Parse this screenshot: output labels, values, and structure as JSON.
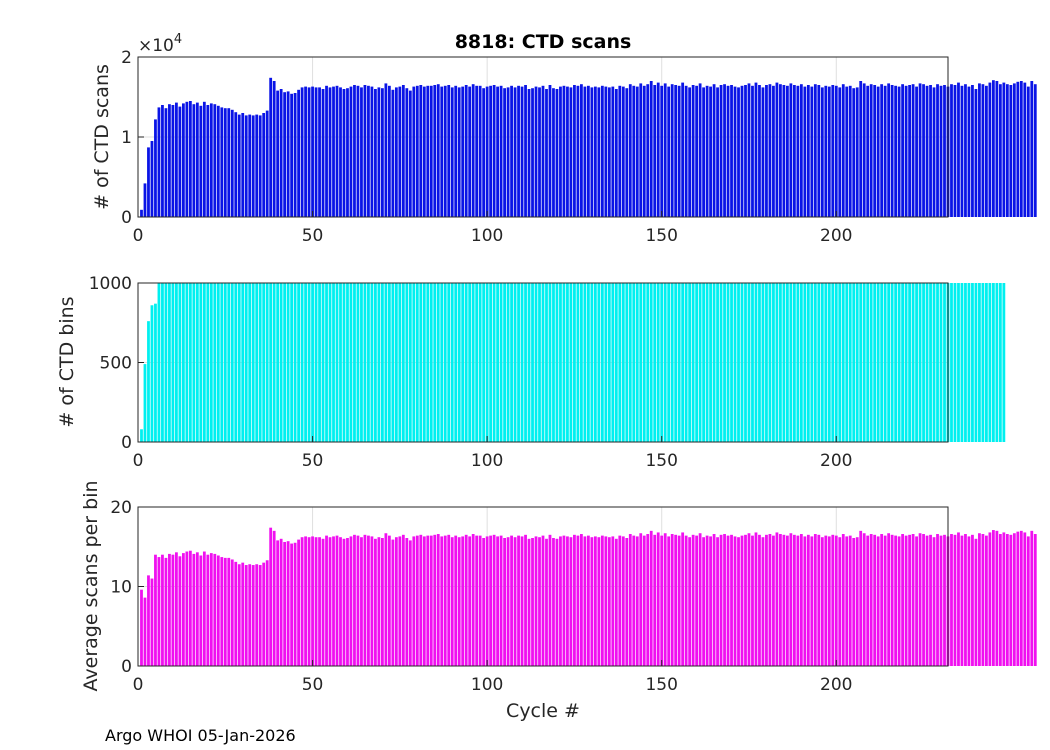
{
  "chart_data": [
    {
      "type": "bar",
      "title": "8818: CTD scans",
      "xlabel": "",
      "ylabel": "# of CTD scans",
      "xlim": [
        0,
        232
      ],
      "ylim": [
        0,
        2
      ],
      "x_ticks": [
        "0",
        "50",
        "100",
        "150",
        "200"
      ],
      "y_ticks": [
        "0",
        "1",
        "2"
      ],
      "exponent_label": "×10",
      "exponent_power": "4",
      "color": "#0a14e6",
      "values": [
        0.09,
        0.42,
        0.87,
        0.95,
        1.22,
        1.37,
        1.4,
        1.36,
        1.41,
        1.4,
        1.43,
        1.38,
        1.42,
        1.44,
        1.45,
        1.41,
        1.43,
        1.39,
        1.44,
        1.4,
        1.42,
        1.41,
        1.39,
        1.37,
        1.36,
        1.36,
        1.34,
        1.31,
        1.28,
        1.3,
        1.27,
        1.28,
        1.27,
        1.28,
        1.27,
        1.3,
        1.33,
        1.74,
        1.7,
        1.58,
        1.6,
        1.56,
        1.57,
        1.54,
        1.55,
        1.59,
        1.62,
        1.63,
        1.62,
        1.63,
        1.62,
        1.62,
        1.6,
        1.64,
        1.62,
        1.63,
        1.64,
        1.62,
        1.6,
        1.61,
        1.63,
        1.65,
        1.64,
        1.62,
        1.65,
        1.64,
        1.63,
        1.6,
        1.62,
        1.61,
        1.67,
        1.64,
        1.59,
        1.62,
        1.63,
        1.65,
        1.61,
        1.58,
        1.63,
        1.64,
        1.65,
        1.63,
        1.64,
        1.64,
        1.65,
        1.66,
        1.63,
        1.64,
        1.65,
        1.62,
        1.64,
        1.62,
        1.63,
        1.65,
        1.63,
        1.66,
        1.64,
        1.64,
        1.61,
        1.63,
        1.64,
        1.65,
        1.63,
        1.64,
        1.61,
        1.62,
        1.64,
        1.62,
        1.64,
        1.63,
        1.65,
        1.6,
        1.61,
        1.63,
        1.62,
        1.64,
        1.6,
        1.65,
        1.61,
        1.6,
        1.63,
        1.64,
        1.63,
        1.62,
        1.65,
        1.64,
        1.66,
        1.63,
        1.64,
        1.62,
        1.63,
        1.62,
        1.64,
        1.63,
        1.62,
        1.63,
        1.6,
        1.64,
        1.63,
        1.61,
        1.66,
        1.64,
        1.63,
        1.67,
        1.64,
        1.66,
        1.7,
        1.65,
        1.68,
        1.64,
        1.67,
        1.63,
        1.66,
        1.65,
        1.64,
        1.68,
        1.64,
        1.62,
        1.65,
        1.64,
        1.67,
        1.62,
        1.64,
        1.63,
        1.66,
        1.62,
        1.65,
        1.66,
        1.64,
        1.65,
        1.63,
        1.62,
        1.64,
        1.65,
        1.67,
        1.64,
        1.68,
        1.65,
        1.62,
        1.65,
        1.66,
        1.64,
        1.68,
        1.66,
        1.65,
        1.64,
        1.67,
        1.65,
        1.64,
        1.66,
        1.63,
        1.65,
        1.63,
        1.66,
        1.65,
        1.62,
        1.64,
        1.63,
        1.65,
        1.64,
        1.62,
        1.66,
        1.63,
        1.64,
        1.61,
        1.62,
        1.7,
        1.67,
        1.64,
        1.66,
        1.65,
        1.63,
        1.66,
        1.64,
        1.67,
        1.65,
        1.64,
        1.63,
        1.66,
        1.64,
        1.65,
        1.66,
        1.63,
        1.67,
        1.66,
        1.64,
        1.65,
        1.62,
        1.66,
        1.64,
        1.65,
        1.63,
        1.66,
        1.65,
        1.68,
        1.64,
        1.66,
        1.63,
        1.65,
        1.6,
        1.67,
        1.66,
        1.64,
        1.68,
        1.71,
        1.7,
        1.66,
        1.68,
        1.66,
        1.65,
        1.67,
        1.69,
        1.7,
        1.68,
        1.63,
        1.7,
        1.66
      ]
    },
    {
      "type": "bar",
      "title": "",
      "xlabel": "",
      "ylabel": "# of CTD bins",
      "xlim": [
        0,
        232
      ],
      "ylim": [
        0,
        1000
      ],
      "x_ticks": [
        "0",
        "50",
        "100",
        "150",
        "200"
      ],
      "y_ticks": [
        "0",
        "500",
        "1000"
      ],
      "color": "#00f0f0",
      "values": [
        80,
        490,
        760,
        860,
        870,
        1000,
        1000,
        1000,
        1000,
        1000,
        1000,
        1000,
        1000,
        1000,
        1000,
        1000,
        1000,
        1000,
        1000,
        1000,
        1000,
        1000,
        1000,
        1000,
        1000,
        1000,
        1000,
        1000,
        1000,
        1000,
        1000,
        1000,
        1000,
        1000,
        1000,
        1000,
        1000,
        1000,
        1000,
        1000,
        1000,
        1000,
        1000,
        1000,
        1000,
        1000,
        1000,
        1000,
        1000,
        1000,
        1000,
        1000,
        1000,
        1000,
        1000,
        1000,
        1000,
        1000,
        1000,
        1000,
        1000,
        1000,
        1000,
        1000,
        1000,
        1000,
        1000,
        1000,
        1000,
        1000,
        1000,
        1000,
        1000,
        1000,
        1000,
        1000,
        1000,
        1000,
        1000,
        1000,
        1000,
        1000,
        1000,
        1000,
        1000,
        1000,
        1000,
        1000,
        1000,
        1000,
        1000,
        1000,
        1000,
        1000,
        1000,
        1000,
        1000,
        1000,
        1000,
        1000,
        1000,
        1000,
        1000,
        1000,
        1000,
        1000,
        1000,
        1000,
        1000,
        1000,
        1000,
        1000,
        1000,
        1000,
        1000,
        1000,
        1000,
        1000,
        1000,
        1000,
        1000,
        1000,
        1000,
        1000,
        1000,
        1000,
        1000,
        1000,
        1000,
        1000,
        1000,
        1000,
        1000,
        1000,
        1000,
        1000,
        1000,
        1000,
        1000,
        1000,
        1000,
        1000,
        1000,
        1000,
        1000,
        1000,
        1000,
        1000,
        1000,
        1000,
        1000,
        1000,
        1000,
        1000,
        1000,
        1000,
        1000,
        1000,
        1000,
        1000,
        1000,
        1000,
        1000,
        1000,
        1000,
        1000,
        1000,
        1000,
        1000,
        1000,
        1000,
        1000,
        1000,
        1000,
        1000,
        1000,
        1000,
        1000,
        1000,
        1000,
        1000,
        1000,
        1000,
        1000,
        1000,
        1000,
        1000,
        1000,
        1000,
        1000,
        1000,
        1000,
        1000,
        1000,
        1000,
        1000,
        1000,
        1000,
        1000,
        1000,
        1000,
        1000,
        1000,
        1000,
        1000,
        1000,
        1000,
        1000,
        1000,
        1000,
        1000,
        1000,
        1000,
        1000,
        1000,
        1000,
        1000,
        1000,
        1000,
        1000,
        1000,
        1000,
        1000,
        1000,
        1000,
        1000,
        1000,
        1000,
        1000,
        1000,
        1000,
        1000,
        1000,
        1000,
        1000,
        1000,
        1000,
        1000,
        1000,
        1000,
        1000,
        1000,
        1000,
        1000,
        1000,
        1000,
        1000,
        1000
      ]
    },
    {
      "type": "bar",
      "title": "",
      "xlabel": "Cycle #",
      "ylabel": "Average scans per bin",
      "xlim": [
        0,
        232
      ],
      "ylim": [
        0,
        20
      ],
      "x_ticks": [
        "0",
        "50",
        "100",
        "150",
        "200"
      ],
      "y_ticks": [
        "0",
        "10",
        "20"
      ],
      "color": "#f010f0",
      "values": [
        9.6,
        8.6,
        11.4,
        11.0,
        14.0,
        13.7,
        14.0,
        13.6,
        14.1,
        14.0,
        14.3,
        13.8,
        14.2,
        14.4,
        14.5,
        14.1,
        14.3,
        13.9,
        14.4,
        14.0,
        14.2,
        14.1,
        13.9,
        13.7,
        13.6,
        13.6,
        13.4,
        13.1,
        12.8,
        13.0,
        12.7,
        12.8,
        12.7,
        12.8,
        12.7,
        13.0,
        13.3,
        17.4,
        17.0,
        15.8,
        16.0,
        15.6,
        15.7,
        15.4,
        15.5,
        15.9,
        16.2,
        16.3,
        16.2,
        16.3,
        16.2,
        16.2,
        16.0,
        16.4,
        16.2,
        16.3,
        16.4,
        16.2,
        16.0,
        16.1,
        16.3,
        16.5,
        16.4,
        16.2,
        16.5,
        16.4,
        16.3,
        16.0,
        16.2,
        16.1,
        16.7,
        16.4,
        15.9,
        16.2,
        16.3,
        16.5,
        16.1,
        15.8,
        16.3,
        16.4,
        16.5,
        16.3,
        16.4,
        16.4,
        16.5,
        16.6,
        16.3,
        16.4,
        16.5,
        16.2,
        16.4,
        16.2,
        16.3,
        16.5,
        16.3,
        16.6,
        16.4,
        16.4,
        16.1,
        16.3,
        16.4,
        16.5,
        16.3,
        16.4,
        16.1,
        16.2,
        16.4,
        16.2,
        16.4,
        16.3,
        16.5,
        16.0,
        16.1,
        16.3,
        16.2,
        16.4,
        16.0,
        16.5,
        16.1,
        16.0,
        16.3,
        16.4,
        16.3,
        16.2,
        16.5,
        16.4,
        16.6,
        16.3,
        16.4,
        16.2,
        16.3,
        16.2,
        16.4,
        16.3,
        16.2,
        16.3,
        16.0,
        16.4,
        16.3,
        16.1,
        16.6,
        16.4,
        16.3,
        16.7,
        16.4,
        16.6,
        17.0,
        16.5,
        16.8,
        16.4,
        16.7,
        16.3,
        16.6,
        16.5,
        16.4,
        16.8,
        16.4,
        16.2,
        16.5,
        16.4,
        16.7,
        16.2,
        16.4,
        16.3,
        16.6,
        16.2,
        16.5,
        16.6,
        16.4,
        16.5,
        16.3,
        16.2,
        16.4,
        16.5,
        16.7,
        16.4,
        16.8,
        16.5,
        16.2,
        16.5,
        16.6,
        16.4,
        16.8,
        16.6,
        16.5,
        16.4,
        16.7,
        16.5,
        16.4,
        16.6,
        16.3,
        16.5,
        16.3,
        16.6,
        16.5,
        16.2,
        16.4,
        16.3,
        16.5,
        16.4,
        16.2,
        16.6,
        16.3,
        16.4,
        16.1,
        16.2,
        17.0,
        16.7,
        16.4,
        16.6,
        16.5,
        16.3,
        16.6,
        16.4,
        16.7,
        16.5,
        16.4,
        16.3,
        16.6,
        16.4,
        16.5,
        16.6,
        16.3,
        16.7,
        16.6,
        16.4,
        16.5,
        16.2,
        16.6,
        16.4,
        16.5,
        16.3,
        16.6,
        16.5,
        16.8,
        16.4,
        16.6,
        16.3,
        16.5,
        16.0,
        16.7,
        16.6,
        16.4,
        16.8,
        17.1,
        17.0,
        16.6,
        16.8,
        16.6,
        16.5,
        16.7,
        16.9,
        17.0,
        16.8,
        16.3,
        17.0,
        16.6
      ]
    }
  ],
  "footer": "Argo WHOI 05-Jan-2026"
}
